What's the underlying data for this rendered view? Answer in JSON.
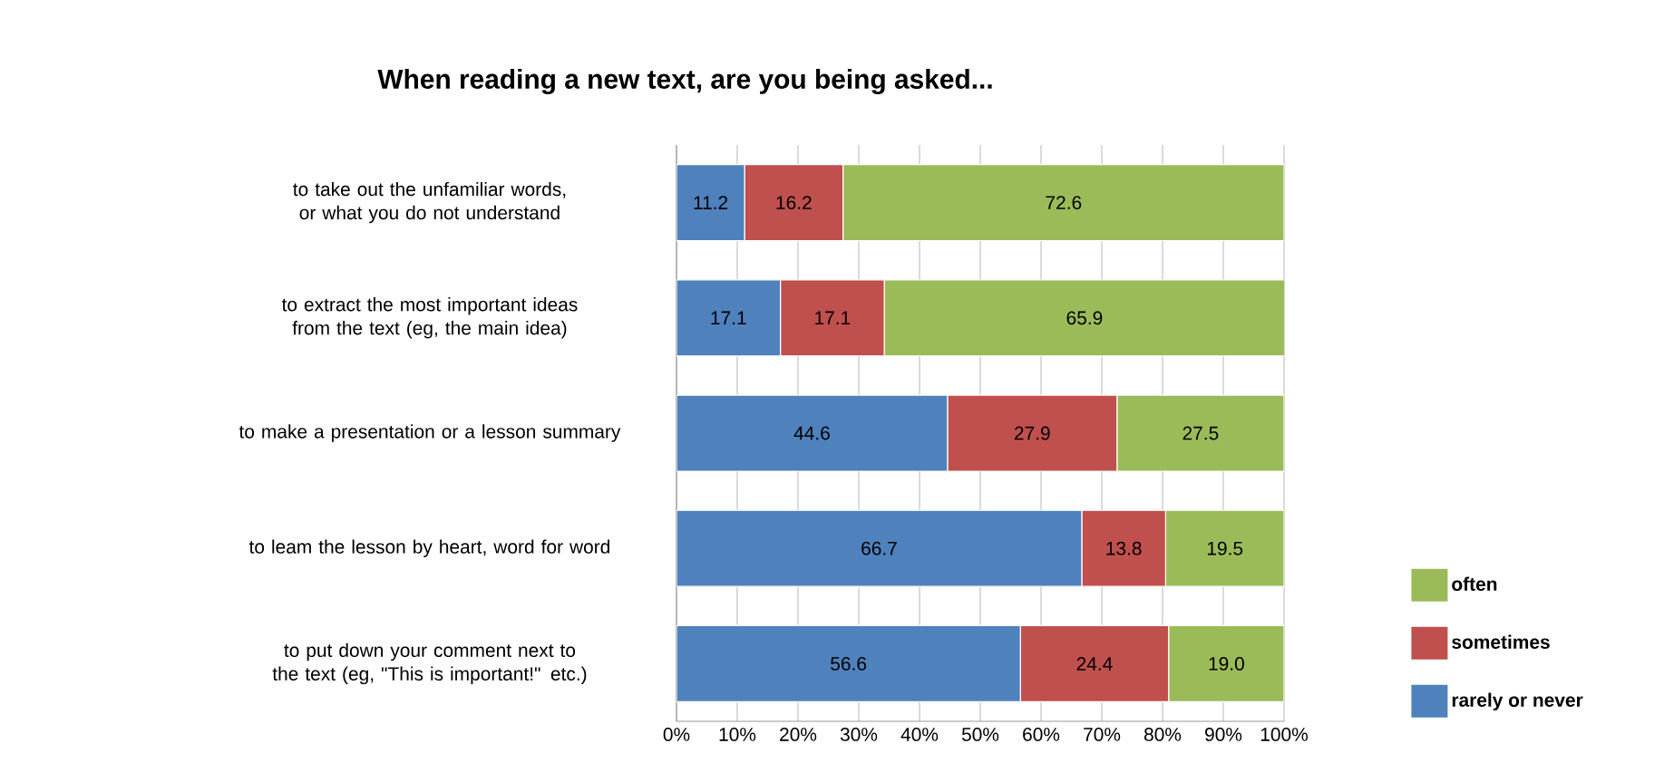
{
  "chart_data": {
    "type": "bar",
    "orientation": "horizontal",
    "stacked": true,
    "title": "When reading a new text, are you being asked...",
    "categories": [
      "to take out the unfamiliar words, or what you do not understand",
      "to extract the most important ideas from the text (eg, the main idea)",
      "to make a presentation or a lesson summary",
      "to leam the lesson by heart, word for word",
      "to put down your comment next to the text (eg, \"This is important!\" etc.)"
    ],
    "series": [
      {
        "name": "rarely or never",
        "color": "#4f81bd",
        "values": [
          11.2,
          17.1,
          44.6,
          66.7,
          56.6
        ],
        "value_labels": [
          "11.2",
          "17.1",
          "44.6",
          "66.7",
          "56.6"
        ]
      },
      {
        "name": "sometimes",
        "color": "#c0504d",
        "values": [
          16.2,
          17.1,
          27.9,
          13.8,
          24.4
        ],
        "value_labels": [
          "16.2",
          "17.1",
          "27.9",
          "13.8",
          "24.4"
        ]
      },
      {
        "name": "often",
        "color": "#9bbb59",
        "values": [
          72.6,
          65.9,
          27.5,
          19.5,
          19.0
        ],
        "value_labels": [
          "72.6",
          "65.9",
          "27.5",
          "19.5",
          "19.0"
        ]
      }
    ],
    "xlim": [
      0,
      100
    ],
    "xticks": [
      {
        "value": 0,
        "label": "0%"
      },
      {
        "value": 10,
        "label": "10%"
      },
      {
        "value": 20,
        "label": "20%"
      },
      {
        "value": 30,
        "label": "30%"
      },
      {
        "value": 40,
        "label": "40%"
      },
      {
        "value": 50,
        "label": "50%"
      },
      {
        "value": 60,
        "label": "60%"
      },
      {
        "value": 70,
        "label": "70%"
      },
      {
        "value": 80,
        "label": "80%"
      },
      {
        "value": 90,
        "label": "90%"
      },
      {
        "value": 100,
        "label": "100%"
      }
    ],
    "grid": "x",
    "legend": "right"
  }
}
